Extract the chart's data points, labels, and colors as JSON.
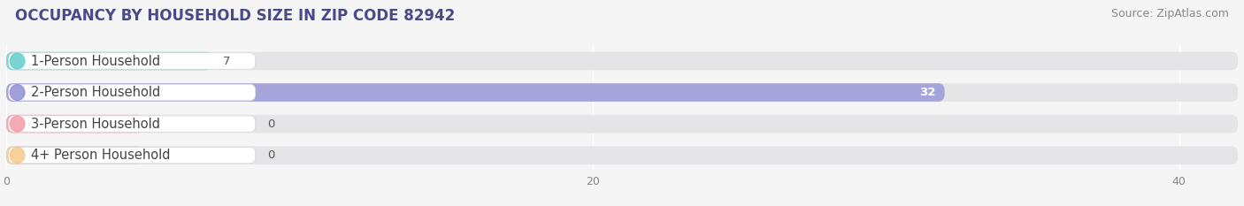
{
  "title": "OCCUPANCY BY HOUSEHOLD SIZE IN ZIP CODE 82942",
  "source": "Source: ZipAtlas.com",
  "categories": [
    "1-Person Household",
    "2-Person Household",
    "3-Person Household",
    "4+ Person Household"
  ],
  "values": [
    7,
    32,
    0,
    0
  ],
  "bar_colors": [
    "#62ceca",
    "#9090d8",
    "#f49baa",
    "#f5c98a"
  ],
  "xlim_max": 42,
  "xticks": [
    0,
    20,
    40
  ],
  "background_color": "#f5f5f5",
  "bar_bg_color": "#e5e5e8",
  "title_fontsize": 12,
  "source_fontsize": 9,
  "label_fontsize": 10.5,
  "value_fontsize": 9.5
}
